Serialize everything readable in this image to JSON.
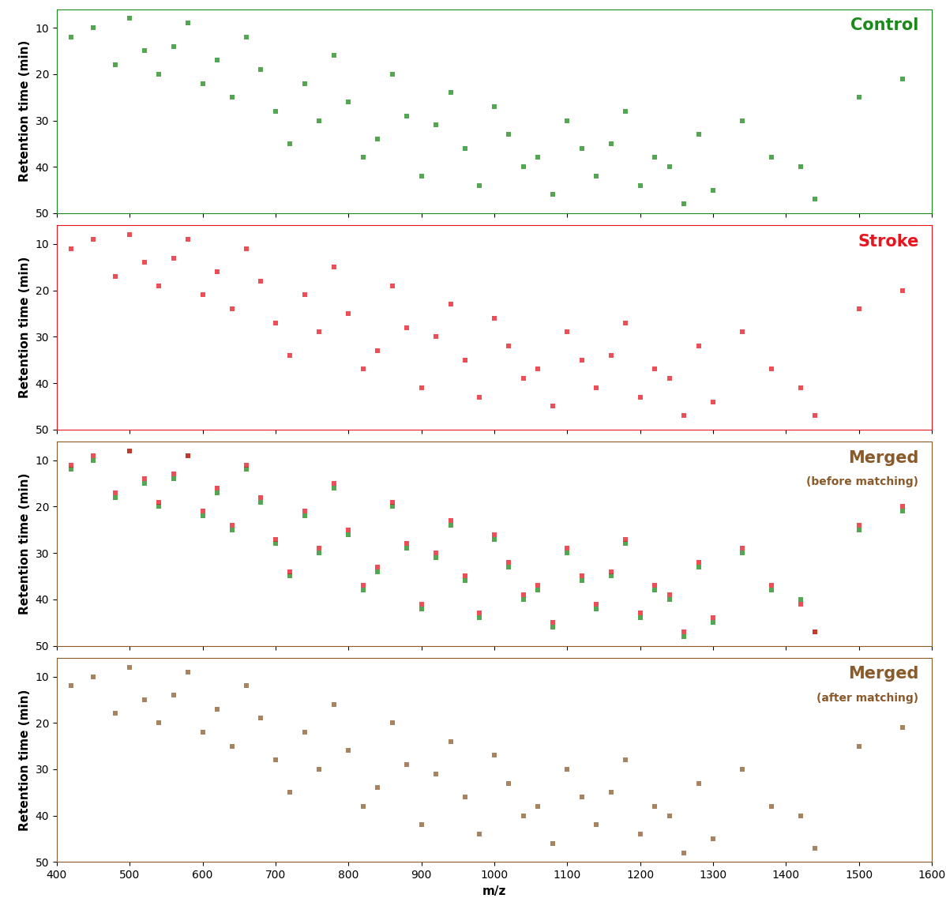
{
  "chart_data": [
    {
      "type": "scatter",
      "title": "Control",
      "ylabel": "Retention time (min)",
      "xlim": [
        400,
        1600
      ],
      "ylim": [
        50,
        6
      ],
      "xticks": [
        400,
        500,
        600,
        700,
        800,
        900,
        1000,
        1100,
        1200,
        1300,
        1400,
        1500,
        1600
      ],
      "yticks": [
        10,
        20,
        30,
        40,
        50
      ],
      "tick_labels": "y",
      "color": "#1a8a1a",
      "marker": "s",
      "series": [
        {
          "color": "#1a8a1a",
          "x": [
            420,
            450,
            480,
            500,
            520,
            540,
            560,
            580,
            600,
            620,
            640,
            660,
            680,
            700,
            720,
            740,
            760,
            780,
            800,
            820,
            840,
            860,
            880,
            900,
            920,
            940,
            960,
            980,
            1000,
            1020,
            1040,
            1060,
            1080,
            1100,
            1120,
            1140,
            1160,
            1180,
            1200,
            1220,
            1240,
            1260,
            1280,
            1300,
            1340,
            1380,
            1420,
            1440,
            1500,
            1560
          ],
          "values": [
            12,
            10,
            18,
            8,
            15,
            20,
            14,
            9,
            22,
            17,
            25,
            12,
            19,
            28,
            35,
            22,
            30,
            16,
            26,
            38,
            34,
            20,
            29,
            42,
            31,
            24,
            36,
            44,
            27,
            33,
            40,
            38,
            46,
            30,
            36,
            42,
            35,
            28,
            44,
            38,
            40,
            48,
            33,
            45,
            30,
            38,
            40,
            47,
            25,
            21
          ]
        }
      ]
    },
    {
      "type": "scatter",
      "title": "Stroke",
      "ylabel": "Retention time (min)",
      "xlim": [
        400,
        1600
      ],
      "ylim": [
        50,
        6
      ],
      "xticks": [
        400,
        500,
        600,
        700,
        800,
        900,
        1000,
        1100,
        1200,
        1300,
        1400,
        1500,
        1600
      ],
      "yticks": [
        10,
        20,
        30,
        40,
        50
      ],
      "tick_labels": "y",
      "color": "#e8141e",
      "marker": "s",
      "series": [
        {
          "color": "#e8141e",
          "x": [
            420,
            450,
            480,
            500,
            520,
            540,
            560,
            580,
            600,
            620,
            640,
            660,
            680,
            700,
            720,
            740,
            760,
            780,
            800,
            820,
            840,
            860,
            880,
            900,
            920,
            940,
            960,
            980,
            1000,
            1020,
            1040,
            1060,
            1080,
            1100,
            1120,
            1140,
            1160,
            1180,
            1200,
            1220,
            1240,
            1260,
            1280,
            1300,
            1340,
            1380,
            1420,
            1440,
            1500,
            1560
          ],
          "values": [
            11,
            9,
            17,
            8,
            14,
            19,
            13,
            9,
            21,
            16,
            24,
            11,
            18,
            27,
            34,
            21,
            29,
            15,
            25,
            37,
            33,
            19,
            28,
            41,
            30,
            23,
            35,
            43,
            26,
            32,
            39,
            37,
            45,
            29,
            35,
            41,
            34,
            27,
            43,
            37,
            39,
            47,
            32,
            44,
            29,
            37,
            41,
            47,
            24,
            20
          ]
        }
      ]
    },
    {
      "type": "scatter",
      "title": "Merged",
      "subtitle": "(before matching)",
      "ylabel": "Retention time (min)",
      "xlim": [
        400,
        1600
      ],
      "ylim": [
        50,
        6
      ],
      "xticks": [
        400,
        500,
        600,
        700,
        800,
        900,
        1000,
        1100,
        1200,
        1300,
        1400,
        1500,
        1600
      ],
      "yticks": [
        10,
        20,
        30,
        40,
        50
      ],
      "tick_labels": "y",
      "color": "#8b5a2b",
      "marker": "s",
      "series": [
        {
          "color": "#1a8a1a",
          "x": [
            420,
            450,
            480,
            500,
            520,
            540,
            560,
            580,
            600,
            620,
            640,
            660,
            680,
            700,
            720,
            740,
            760,
            780,
            800,
            820,
            840,
            860,
            880,
            900,
            920,
            940,
            960,
            980,
            1000,
            1020,
            1040,
            1060,
            1080,
            1100,
            1120,
            1140,
            1160,
            1180,
            1200,
            1220,
            1240,
            1260,
            1280,
            1300,
            1340,
            1380,
            1420,
            1440,
            1500,
            1560
          ],
          "values": [
            12,
            10,
            18,
            8,
            15,
            20,
            14,
            9,
            22,
            17,
            25,
            12,
            19,
            28,
            35,
            22,
            30,
            16,
            26,
            38,
            34,
            20,
            29,
            42,
            31,
            24,
            36,
            44,
            27,
            33,
            40,
            38,
            46,
            30,
            36,
            42,
            35,
            28,
            44,
            38,
            40,
            48,
            33,
            45,
            30,
            38,
            40,
            47,
            25,
            21
          ]
        },
        {
          "color": "#e8141e",
          "x": [
            420,
            450,
            480,
            500,
            520,
            540,
            560,
            580,
            600,
            620,
            640,
            660,
            680,
            700,
            720,
            740,
            760,
            780,
            800,
            820,
            840,
            860,
            880,
            900,
            920,
            940,
            960,
            980,
            1000,
            1020,
            1040,
            1060,
            1080,
            1100,
            1120,
            1140,
            1160,
            1180,
            1200,
            1220,
            1240,
            1260,
            1280,
            1300,
            1340,
            1380,
            1420,
            1440,
            1500,
            1560
          ],
          "values": [
            11,
            9,
            17,
            8,
            14,
            19,
            13,
            9,
            21,
            16,
            24,
            11,
            18,
            27,
            34,
            21,
            29,
            15,
            25,
            37,
            33,
            19,
            28,
            41,
            30,
            23,
            35,
            43,
            26,
            32,
            39,
            37,
            45,
            29,
            35,
            41,
            34,
            27,
            43,
            37,
            39,
            47,
            32,
            44,
            29,
            37,
            41,
            47,
            24,
            20
          ]
        }
      ]
    },
    {
      "type": "scatter",
      "title": "Merged",
      "subtitle": "(after matching)",
      "ylabel": "Retention time (min)",
      "xlabel": "m/z",
      "xlim": [
        400,
        1600
      ],
      "ylim": [
        50,
        6
      ],
      "xticks": [
        400,
        500,
        600,
        700,
        800,
        900,
        1000,
        1100,
        1200,
        1300,
        1400,
        1500,
        1600
      ],
      "yticks": [
        10,
        20,
        30,
        40,
        50
      ],
      "color": "#8b5a2b",
      "marker": "s",
      "series": [
        {
          "color": "#8b5a2b",
          "x": [
            420,
            450,
            480,
            500,
            520,
            540,
            560,
            580,
            600,
            620,
            640,
            660,
            680,
            700,
            720,
            740,
            760,
            780,
            800,
            820,
            840,
            860,
            880,
            900,
            920,
            940,
            960,
            980,
            1000,
            1020,
            1040,
            1060,
            1080,
            1100,
            1120,
            1140,
            1160,
            1180,
            1200,
            1220,
            1240,
            1260,
            1280,
            1300,
            1340,
            1380,
            1420,
            1440,
            1500,
            1560
          ],
          "values": [
            12,
            10,
            18,
            8,
            15,
            20,
            14,
            9,
            22,
            17,
            25,
            12,
            19,
            28,
            35,
            22,
            30,
            16,
            26,
            38,
            34,
            20,
            29,
            42,
            31,
            24,
            36,
            44,
            27,
            33,
            40,
            38,
            46,
            30,
            36,
            42,
            35,
            28,
            44,
            38,
            40,
            48,
            33,
            45,
            30,
            38,
            40,
            47,
            25,
            21
          ]
        }
      ]
    }
  ]
}
